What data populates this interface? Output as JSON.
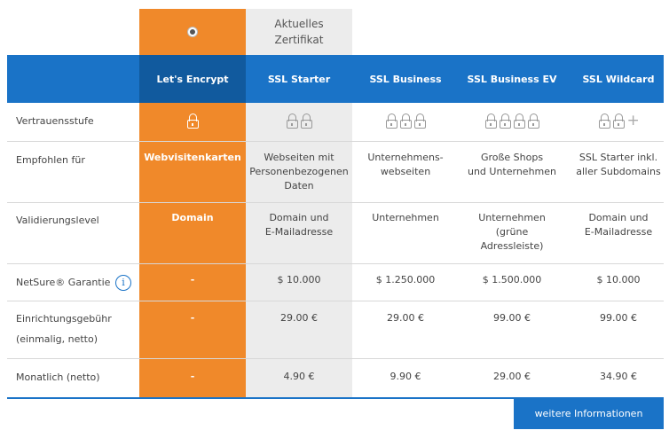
{
  "top": {
    "current_certificate_label": "Aktuelles\nZertifikat"
  },
  "plans": [
    {
      "name": "Let's Encrypt",
      "locks": 1,
      "plus": false
    },
    {
      "name": "SSL Starter",
      "locks": 2,
      "plus": false
    },
    {
      "name": "SSL Business",
      "locks": 3,
      "plus": false
    },
    {
      "name": "SSL Business EV",
      "locks": 4,
      "plus": false
    },
    {
      "name": "SSL Wildcard",
      "locks": 2,
      "plus": true
    }
  ],
  "rows": {
    "trust": {
      "label": "Vertrauensstufe"
    },
    "recommended": {
      "label": "Empfohlen für",
      "values": [
        "Webvisitenkarten",
        "Webseiten mit\nPersonenbezogenen\nDaten",
        "Unternehmens-\nwebseiten",
        "Große Shops\nund Unternehmen",
        "SSL Starter inkl.\naller Subdomains"
      ]
    },
    "validation": {
      "label": "Validierungslevel",
      "values": [
        "Domain",
        "Domain und\nE-Mailadresse",
        "Unternehmen",
        "Unternehmen\n(grüne\nAdressleiste)",
        "Domain und\nE-Mailadresse"
      ]
    },
    "netsure": {
      "label": "NetSure® Garantie",
      "info_icon": "i",
      "values": [
        "-",
        "$ 10.000",
        "$ 1.250.000",
        "$ 1.500.000",
        "$ 10.000"
      ]
    },
    "setup": {
      "label_line1": "Einrichtungsgebühr",
      "label_line2": "(einmalig, netto)",
      "values": [
        "-",
        "29.00 €",
        "29.00 €",
        "99.00 €",
        "99.00 €"
      ]
    },
    "monthly": {
      "label": "Monatlich (netto)",
      "values": [
        "-",
        "4.90 €",
        "9.90 €",
        "29.00 €",
        "34.90 €"
      ]
    }
  },
  "more_button": "weitere Informationen",
  "colors": {
    "accent_blue": "#1a73c7",
    "orange": "#f0892a",
    "gray": "#ececec"
  }
}
